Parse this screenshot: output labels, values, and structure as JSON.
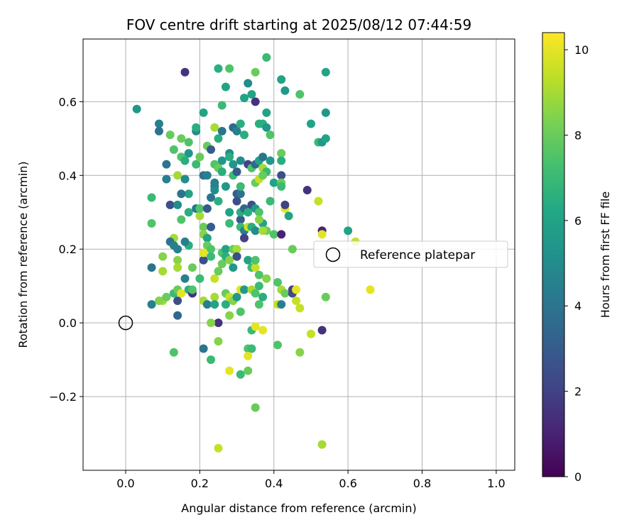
{
  "chart_data": {
    "type": "scatter",
    "title": "FOV centre drift starting at 2025/08/12 07:44:59",
    "xlabel": "Angular distance from reference (arcmin)",
    "ylabel": "Rotation from reference (arcmin)",
    "xlim": [
      -0.115,
      1.05
    ],
    "ylim": [
      -0.4,
      0.77
    ],
    "xticks": [
      0.0,
      0.2,
      0.4,
      0.6,
      0.8,
      1.0
    ],
    "xtick_labels": [
      "0.0",
      "0.2",
      "0.4",
      "0.6",
      "0.8",
      "1.0"
    ],
    "yticks": [
      -0.2,
      0.0,
      0.2,
      0.4,
      0.6
    ],
    "ytick_labels": [
      "−0.2",
      "0.0",
      "0.2",
      "0.4",
      "0.6"
    ],
    "grid": true,
    "colormap": "viridis",
    "colorbar": {
      "label": "Hours from first FF file",
      "range": [
        0,
        10.4
      ],
      "ticks": [
        0,
        2,
        4,
        6,
        8,
        10
      ],
      "tick_labels": [
        "0",
        "2",
        "4",
        "6",
        "8",
        "10"
      ]
    },
    "legend": {
      "entries": [
        "Reference platepar"
      ],
      "placement": "center-right"
    },
    "reference_point": {
      "x": 0.0,
      "y": 0.0,
      "label": "Reference platepar"
    },
    "series": [
      {
        "points": [
          [
            0.16,
            0.68,
            1.5
          ],
          [
            0.35,
            0.6,
            1.5
          ],
          [
            0.38,
            0.72,
            7.0
          ],
          [
            0.28,
            0.69,
            7.5
          ],
          [
            0.25,
            0.69,
            6.5
          ],
          [
            0.35,
            0.68,
            8.0
          ],
          [
            0.42,
            0.66,
            6.0
          ],
          [
            0.43,
            0.63,
            5.5
          ],
          [
            0.47,
            0.62,
            7.5
          ],
          [
            0.54,
            0.68,
            6.0
          ],
          [
            0.03,
            0.58,
            5.5
          ],
          [
            0.09,
            0.54,
            4.5
          ],
          [
            0.09,
            0.52,
            4.0
          ],
          [
            0.12,
            0.51,
            8.0
          ],
          [
            0.13,
            0.47,
            7.5
          ],
          [
            0.15,
            0.5,
            8.0
          ],
          [
            0.17,
            0.49,
            7.5
          ],
          [
            0.19,
            0.52,
            5.0
          ],
          [
            0.19,
            0.53,
            6.5
          ],
          [
            0.21,
            0.57,
            6.0
          ],
          [
            0.24,
            0.53,
            9.0
          ],
          [
            0.25,
            0.5,
            6.5
          ],
          [
            0.26,
            0.59,
            7.0
          ],
          [
            0.26,
            0.52,
            4.0
          ],
          [
            0.27,
            0.64,
            6.0
          ],
          [
            0.29,
            0.53,
            3.5
          ],
          [
            0.3,
            0.52,
            4.5
          ],
          [
            0.31,
            0.54,
            6.5
          ],
          [
            0.32,
            0.51,
            6.5
          ],
          [
            0.32,
            0.61,
            6.0
          ],
          [
            0.33,
            0.65,
            5.0
          ],
          [
            0.34,
            0.62,
            6.0
          ],
          [
            0.36,
            0.54,
            6.5
          ],
          [
            0.37,
            0.54,
            6.5
          ],
          [
            0.38,
            0.53,
            5.5
          ],
          [
            0.38,
            0.57,
            6.0
          ],
          [
            0.39,
            0.51,
            7.5
          ],
          [
            0.42,
            0.46,
            8.0
          ],
          [
            0.5,
            0.54,
            6.0
          ],
          [
            0.52,
            0.49,
            7.0
          ],
          [
            0.53,
            0.49,
            5.5
          ],
          [
            0.54,
            0.5,
            6.0
          ],
          [
            0.54,
            0.57,
            5.5
          ],
          [
            0.15,
            0.45,
            7.5
          ],
          [
            0.16,
            0.44,
            6.5
          ],
          [
            0.17,
            0.46,
            5.5
          ],
          [
            0.19,
            0.43,
            7.0
          ],
          [
            0.2,
            0.45,
            8.0
          ],
          [
            0.22,
            0.48,
            8.0
          ],
          [
            0.23,
            0.47,
            3.0
          ],
          [
            0.24,
            0.43,
            7.5
          ],
          [
            0.25,
            0.42,
            8.0
          ],
          [
            0.26,
            0.44,
            5.5
          ],
          [
            0.26,
            0.41,
            6.5
          ],
          [
            0.28,
            0.46,
            5.0
          ],
          [
            0.28,
            0.45,
            6.5
          ],
          [
            0.29,
            0.43,
            5.5
          ],
          [
            0.29,
            0.4,
            7.0
          ],
          [
            0.3,
            0.41,
            3.0
          ],
          [
            0.31,
            0.44,
            5.0
          ],
          [
            0.33,
            0.43,
            2.0
          ],
          [
            0.34,
            0.42,
            7.5
          ],
          [
            0.35,
            0.43,
            3.5
          ],
          [
            0.36,
            0.44,
            6.0
          ],
          [
            0.37,
            0.42,
            9.0
          ],
          [
            0.37,
            0.45,
            4.0
          ],
          [
            0.38,
            0.41,
            7.0
          ],
          [
            0.39,
            0.44,
            5.5
          ],
          [
            0.4,
            0.38,
            6.0
          ],
          [
            0.42,
            0.44,
            6.5
          ],
          [
            0.42,
            0.4,
            2.5
          ],
          [
            0.11,
            0.43,
            4.0
          ],
          [
            0.11,
            0.39,
            4.5
          ],
          [
            0.14,
            0.4,
            9.0
          ],
          [
            0.16,
            0.39,
            5.0
          ],
          [
            0.17,
            0.35,
            6.0
          ],
          [
            0.21,
            0.4,
            4.0
          ],
          [
            0.22,
            0.4,
            4.5
          ],
          [
            0.23,
            0.34,
            4.0
          ],
          [
            0.24,
            0.37,
            4.5
          ],
          [
            0.24,
            0.36,
            5.0
          ],
          [
            0.24,
            0.38,
            4.5
          ],
          [
            0.27,
            0.37,
            5.5
          ],
          [
            0.3,
            0.35,
            3.0
          ],
          [
            0.3,
            0.33,
            2.5
          ],
          [
            0.31,
            0.35,
            4.0
          ],
          [
            0.31,
            0.37,
            7.0
          ],
          [
            0.35,
            0.38,
            8.0
          ],
          [
            0.36,
            0.39,
            9.5
          ],
          [
            0.37,
            0.4,
            8.0
          ],
          [
            0.42,
            0.38,
            8.0
          ],
          [
            0.42,
            0.37,
            7.0
          ],
          [
            0.39,
            0.33,
            7.0
          ],
          [
            0.43,
            0.31,
            10.0
          ],
          [
            0.43,
            0.32,
            2.0
          ],
          [
            0.44,
            0.29,
            6.0
          ],
          [
            0.49,
            0.36,
            1.5
          ],
          [
            0.52,
            0.33,
            9.5
          ],
          [
            0.07,
            0.34,
            7.0
          ],
          [
            0.12,
            0.32,
            2.5
          ],
          [
            0.14,
            0.32,
            5.0
          ],
          [
            0.15,
            0.35,
            4.0
          ],
          [
            0.17,
            0.3,
            6.5
          ],
          [
            0.19,
            0.31,
            4.0
          ],
          [
            0.2,
            0.29,
            9.0
          ],
          [
            0.2,
            0.31,
            7.5
          ],
          [
            0.22,
            0.31,
            3.0
          ],
          [
            0.25,
            0.33,
            6.5
          ],
          [
            0.28,
            0.3,
            6.0
          ],
          [
            0.31,
            0.28,
            3.0
          ],
          [
            0.31,
            0.3,
            6.5
          ],
          [
            0.32,
            0.31,
            3.5
          ],
          [
            0.33,
            0.3,
            6.5
          ],
          [
            0.34,
            0.32,
            2.5
          ],
          [
            0.35,
            0.31,
            5.5
          ],
          [
            0.36,
            0.3,
            7.5
          ],
          [
            0.37,
            0.27,
            6.0
          ],
          [
            0.38,
            0.25,
            8.0
          ],
          [
            0.4,
            0.24,
            7.5
          ],
          [
            0.42,
            0.24,
            1.0
          ],
          [
            0.07,
            0.27,
            7.5
          ],
          [
            0.13,
            0.23,
            9.0
          ],
          [
            0.15,
            0.28,
            7.5
          ],
          [
            0.17,
            0.21,
            6.5
          ],
          [
            0.12,
            0.22,
            4.0
          ],
          [
            0.13,
            0.21,
            4.5
          ],
          [
            0.14,
            0.2,
            4.5
          ],
          [
            0.16,
            0.22,
            4.5
          ],
          [
            0.21,
            0.26,
            8.0
          ],
          [
            0.21,
            0.24,
            8.5
          ],
          [
            0.22,
            0.23,
            6.0
          ],
          [
            0.22,
            0.21,
            8.0
          ],
          [
            0.23,
            0.26,
            3.0
          ],
          [
            0.23,
            0.2,
            7.5
          ],
          [
            0.26,
            0.19,
            7.5
          ],
          [
            0.27,
            0.2,
            6.0
          ],
          [
            0.28,
            0.27,
            7.0
          ],
          [
            0.29,
            0.2,
            8.0
          ],
          [
            0.3,
            0.18,
            3.0
          ],
          [
            0.31,
            0.26,
            7.0
          ],
          [
            0.32,
            0.25,
            4.5
          ],
          [
            0.32,
            0.23,
            2.0
          ],
          [
            0.33,
            0.26,
            9.5
          ],
          [
            0.34,
            0.26,
            6.5
          ],
          [
            0.35,
            0.25,
            5.0
          ],
          [
            0.36,
            0.28,
            8.5
          ],
          [
            0.37,
            0.25,
            9.0
          ],
          [
            0.45,
            0.2,
            8.0
          ],
          [
            0.53,
            0.25,
            1.0
          ],
          [
            0.53,
            0.24,
            10.0
          ],
          [
            0.6,
            0.25,
            6.0
          ],
          [
            0.62,
            0.22,
            9.5
          ],
          [
            0.07,
            0.15,
            4.0
          ],
          [
            0.1,
            0.18,
            8.5
          ],
          [
            0.1,
            0.14,
            9.0
          ],
          [
            0.14,
            0.17,
            8.5
          ],
          [
            0.14,
            0.15,
            9.0
          ],
          [
            0.16,
            0.12,
            4.5
          ],
          [
            0.18,
            0.15,
            8.0
          ],
          [
            0.2,
            0.12,
            7.0
          ],
          [
            0.21,
            0.17,
            2.5
          ],
          [
            0.21,
            0.19,
            10.0
          ],
          [
            0.23,
            0.18,
            7.0
          ],
          [
            0.24,
            0.12,
            9.5
          ],
          [
            0.25,
            0.14,
            8.0
          ],
          [
            0.26,
            0.16,
            8.0
          ],
          [
            0.27,
            0.18,
            6.5
          ],
          [
            0.28,
            0.17,
            8.5
          ],
          [
            0.29,
            0.15,
            5.5
          ],
          [
            0.3,
            0.2,
            9.0
          ],
          [
            0.3,
            0.18,
            2.5
          ],
          [
            0.33,
            0.17,
            6.0
          ],
          [
            0.34,
            0.15,
            7.0
          ],
          [
            0.35,
            0.15,
            9.5
          ],
          [
            0.35,
            0.17,
            7.5
          ],
          [
            0.36,
            0.13,
            7.5
          ],
          [
            0.38,
            0.12,
            8.5
          ],
          [
            0.41,
            0.11,
            7.5
          ],
          [
            0.07,
            0.05,
            4.5
          ],
          [
            0.1,
            0.06,
            9.0
          ],
          [
            0.11,
            0.07,
            8.0
          ],
          [
            0.13,
            0.08,
            7.0
          ],
          [
            0.14,
            0.09,
            8.0
          ],
          [
            0.14,
            0.06,
            2.5
          ],
          [
            0.14,
            0.02,
            3.5
          ],
          [
            0.15,
            0.08,
            10.0
          ],
          [
            0.17,
            0.09,
            6.5
          ],
          [
            0.18,
            0.08,
            1.5
          ],
          [
            0.18,
            0.09,
            7.5
          ],
          [
            0.21,
            0.06,
            9.0
          ],
          [
            0.22,
            0.05,
            4.5
          ],
          [
            0.24,
            0.07,
            9.0
          ],
          [
            0.24,
            0.05,
            6.0
          ],
          [
            0.25,
            0.0,
            1.5
          ],
          [
            0.27,
            0.08,
            8.0
          ],
          [
            0.27,
            0.05,
            6.5
          ],
          [
            0.28,
            0.07,
            9.5
          ],
          [
            0.29,
            0.06,
            8.5
          ],
          [
            0.3,
            0.07,
            5.5
          ],
          [
            0.31,
            0.09,
            10.0
          ],
          [
            0.32,
            0.09,
            5.5
          ],
          [
            0.34,
            0.09,
            9.0
          ],
          [
            0.35,
            0.08,
            7.5
          ],
          [
            0.36,
            0.1,
            7.0
          ],
          [
            0.36,
            0.05,
            7.5
          ],
          [
            0.37,
            0.07,
            6.5
          ],
          [
            0.41,
            0.05,
            9.5
          ],
          [
            0.42,
            0.05,
            4.5
          ],
          [
            0.42,
            0.09,
            9.0
          ],
          [
            0.43,
            0.08,
            8.0
          ],
          [
            0.45,
            0.08,
            2.5
          ],
          [
            0.45,
            0.09,
            2.0
          ],
          [
            0.46,
            0.09,
            10.0
          ],
          [
            0.46,
            0.06,
            9.5
          ],
          [
            0.47,
            0.04,
            9.5
          ],
          [
            0.54,
            0.07,
            8.0
          ],
          [
            0.66,
            0.09,
            10.0
          ],
          [
            0.09,
            0.06,
            8.5
          ],
          [
            0.23,
            0.0,
            8.5
          ],
          [
            0.28,
            0.02,
            8.5
          ],
          [
            0.31,
            0.03,
            7.5
          ],
          [
            0.34,
            -0.02,
            7.0
          ],
          [
            0.35,
            -0.01,
            10.0
          ],
          [
            0.37,
            -0.02,
            10.0
          ],
          [
            0.41,
            -0.06,
            7.5
          ],
          [
            0.47,
            -0.08,
            8.5
          ],
          [
            0.5,
            -0.03,
            9.5
          ],
          [
            0.53,
            -0.02,
            1.5
          ],
          [
            0.13,
            -0.08,
            7.5
          ],
          [
            0.21,
            -0.07,
            4.0
          ],
          [
            0.23,
            -0.1,
            7.0
          ],
          [
            0.25,
            -0.05,
            8.5
          ],
          [
            0.28,
            -0.13,
            10.0
          ],
          [
            0.31,
            -0.14,
            7.0
          ],
          [
            0.33,
            -0.07,
            7.5
          ],
          [
            0.33,
            -0.13,
            8.0
          ],
          [
            0.34,
            -0.07,
            7.0
          ],
          [
            0.33,
            -0.09,
            10.0
          ],
          [
            0.35,
            -0.23,
            8.0
          ],
          [
            0.25,
            -0.34,
            9.5
          ],
          [
            0.53,
            -0.33,
            9.0
          ]
        ]
      }
    ]
  }
}
